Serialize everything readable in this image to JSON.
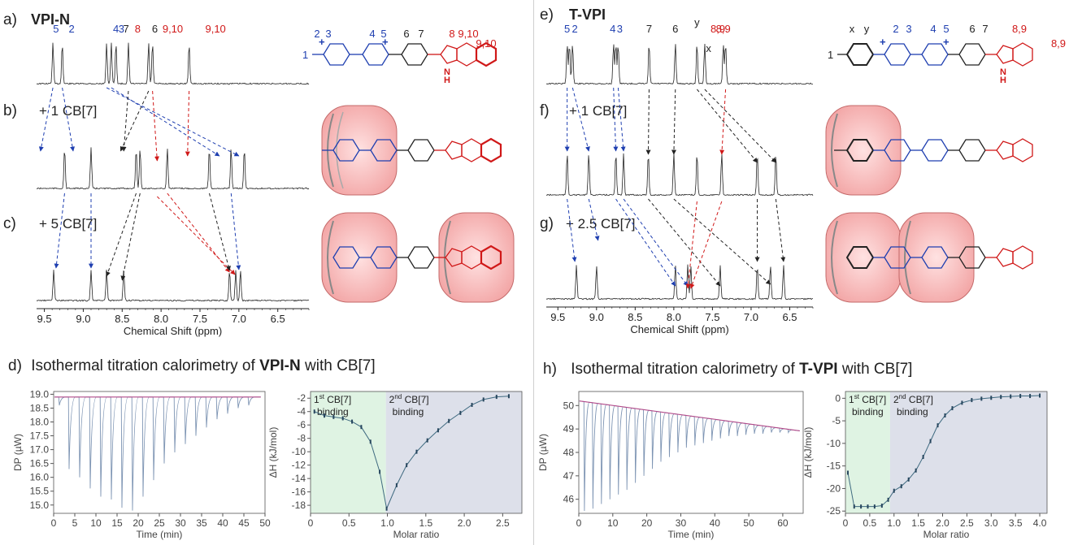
{
  "panels": {
    "a": {
      "label": "a)",
      "title": "VPI-N"
    },
    "b": {
      "label": "b)",
      "text": "+ 1 CB[7]"
    },
    "c": {
      "label": "c)",
      "text": "+ 5 CB[7]"
    },
    "d": {
      "label": "d)",
      "text_pre": "Isothermal titration calorimetry of ",
      "bold": "VPI-N",
      "text_post": " with CB[7]"
    },
    "e": {
      "label": "e)",
      "title": "T-VPI"
    },
    "f": {
      "label": "f)",
      "text": "+ 1 CB[7]"
    },
    "g": {
      "label": "g)",
      "text": "+ 2.5 CB[7]"
    },
    "h": {
      "label": "h)",
      "text_pre": "Isothermal titration calorimetry of ",
      "bold": "T-VPI",
      "text_post": " with CB[7]"
    }
  },
  "nmr_left": {
    "xlabel": "Chemical Shift (ppm)",
    "xticks": [
      "9.5",
      "9.0",
      "8.5",
      "8.0",
      "7.5",
      "7.0",
      "6.5"
    ],
    "peak_labels": [
      {
        "text": "5",
        "color": "#1f3fb0",
        "ppm": 9.35
      },
      {
        "text": "2",
        "color": "#1f3fb0",
        "ppm": 9.15
      },
      {
        "text": "4",
        "color": "#1f3fb0",
        "ppm": 8.58
      },
      {
        "text": "3",
        "color": "#1f3fb0",
        "ppm": 8.51
      },
      {
        "text": "7",
        "color": "#222222",
        "ppm": 8.45
      },
      {
        "text": "8",
        "color": "#d01818",
        "ppm": 8.3
      },
      {
        "text": "6",
        "color": "#222222",
        "ppm": 8.08
      },
      {
        "text": "9,10",
        "color": "#d01818",
        "ppm": 7.85
      },
      {
        "text": "9,10",
        "color": "#d01818",
        "ppm": 7.3
      }
    ],
    "spectra": [
      {
        "peaks_ppm": [
          9.39,
          9.27,
          8.7,
          8.64,
          8.58,
          8.42,
          8.16,
          8.11,
          7.64
        ]
      },
      {
        "peaks_ppm": [
          9.24,
          8.9,
          8.32,
          8.27,
          7.92,
          7.38,
          7.1,
          6.93
        ]
      },
      {
        "peaks_ppm": [
          9.38,
          8.9,
          8.7,
          8.48,
          7.12,
          7.04,
          6.98
        ]
      }
    ]
  },
  "nmr_right": {
    "xlabel": "Chemical Shift (ppm)",
    "xticks": [
      "9.5",
      "9.0",
      "8.5",
      "8.0",
      "7.5",
      "7.0",
      "6.5"
    ],
    "peak_labels": [
      {
        "text": "5",
        "color": "#1f3fb0",
        "ppm": 9.38
      },
      {
        "text": "2",
        "color": "#1f3fb0",
        "ppm": 9.28
      },
      {
        "text": "4",
        "color": "#1f3fb0",
        "ppm": 8.79
      },
      {
        "text": "3",
        "color": "#1f3fb0",
        "ppm": 8.7
      },
      {
        "text": "7",
        "color": "#222222",
        "ppm": 8.32
      },
      {
        "text": "6",
        "color": "#222222",
        "ppm": 7.98
      },
      {
        "text": "y",
        "color": "#222222",
        "ppm": 7.7
      },
      {
        "text": "x",
        "color": "#222222",
        "ppm": 7.55
      },
      {
        "text": "8,9",
        "color": "#d01818",
        "ppm": 7.43
      },
      {
        "text": "8,9",
        "color": "#d01818",
        "ppm": 7.36
      }
    ],
    "spectra": [
      {
        "peaks_ppm": [
          9.38,
          9.35,
          9.31,
          8.78,
          8.75,
          8.72,
          8.32,
          7.98,
          7.7,
          7.6,
          7.36,
          7.33
        ]
      },
      {
        "peaks_ppm": [
          9.38,
          9.1,
          8.75,
          8.65,
          8.33,
          8.0,
          7.7,
          7.38,
          6.92,
          6.68
        ]
      },
      {
        "peaks_ppm": [
          9.26,
          9.0,
          7.98,
          7.82,
          7.78,
          7.4,
          6.92,
          6.75,
          6.58
        ]
      }
    ]
  },
  "structures": {
    "left_top_numbers": [
      {
        "text": "2",
        "color": "#1f3fb0"
      },
      {
        "text": "3",
        "color": "#1f3fb0"
      },
      {
        "text": "4",
        "color": "#1f3fb0"
      },
      {
        "text": "5",
        "color": "#1f3fb0"
      },
      {
        "text": "6",
        "color": "#222222"
      },
      {
        "text": "7",
        "color": "#222222"
      },
      {
        "text": "8",
        "color": "#d01818"
      },
      {
        "text": "9,10",
        "color": "#d01818"
      },
      {
        "text": "9,10",
        "color": "#d01818"
      }
    ],
    "left_methyl": "1",
    "right_top_numbers": [
      {
        "text": "x",
        "color": "#222222"
      },
      {
        "text": "y",
        "color": "#222222"
      },
      {
        "text": "2",
        "color": "#1f3fb0"
      },
      {
        "text": "3",
        "color": "#1f3fb0"
      },
      {
        "text": "4",
        "color": "#1f3fb0"
      },
      {
        "text": "5",
        "color": "#1f3fb0"
      },
      {
        "text": "6",
        "color": "#222222"
      },
      {
        "text": "7",
        "color": "#222222"
      },
      {
        "text": "8,9",
        "color": "#d01818"
      },
      {
        "text": "8,9",
        "color": "#d01818"
      }
    ],
    "right_methyl": "1",
    "plus": "+",
    "nh": "H",
    "n": "N"
  },
  "chart_data": [
    {
      "type": "line",
      "panel": "d-left",
      "xlabel": "Time (min)",
      "ylabel": "DP (µW)",
      "xlim": [
        0,
        50
      ],
      "ylim": [
        14.7,
        19.1
      ],
      "xticks": [
        "0",
        "5",
        "10",
        "15",
        "20",
        "25",
        "30",
        "35",
        "40",
        "45",
        "50"
      ],
      "yticks": [
        "15.0",
        "15.5",
        "16.0",
        "16.5",
        "17.0",
        "17.5",
        "18.0",
        "18.5",
        "19.0"
      ],
      "baseline": 18.9,
      "injection_times": [
        1.2,
        3.5,
        6.0,
        8.5,
        11.0,
        13.5,
        16.0,
        18.5,
        21.0,
        23.5,
        26.0,
        28.5,
        31.0,
        33.5,
        36.0,
        38.5,
        41.0,
        43.5,
        46.0
      ],
      "injection_minima": [
        18.6,
        16.3,
        16.0,
        15.6,
        15.3,
        15.2,
        14.9,
        14.8,
        15.3,
        15.9,
        16.5,
        16.9,
        17.2,
        17.5,
        17.8,
        18.1,
        18.3,
        18.5,
        18.6
      ]
    },
    {
      "type": "scatter",
      "panel": "d-right",
      "xlabel": "Molar ratio",
      "ylabel": "ΔH (kJ/mol)",
      "xlim": [
        0,
        2.75
      ],
      "ylim": [
        -19.2,
        -1.0
      ],
      "xticks": [
        "0",
        "0.5",
        "1.0",
        "1.5",
        "2.0",
        "2.5"
      ],
      "yticks": [
        "-2",
        "-4",
        "-6",
        "-8",
        "-10",
        "-12",
        "-14",
        "-16",
        "-18"
      ],
      "region1": {
        "label_line1_pre": "1",
        "sup": "st",
        "label_line1_post": " CB[7]",
        "label_line2": "binding",
        "x_range": [
          0,
          0.98
        ],
        "color": "#dff3e3"
      },
      "region2": {
        "label_line1_pre": "2",
        "sup": "nd",
        "label_line1_post": " CB[7]",
        "label_line2": "binding",
        "x_range": [
          0.98,
          2.75
        ],
        "color": "#dde0ea"
      },
      "x": [
        0.05,
        0.18,
        0.3,
        0.42,
        0.54,
        0.66,
        0.78,
        0.9,
        0.99,
        1.12,
        1.25,
        1.38,
        1.52,
        1.66,
        1.8,
        1.95,
        2.1,
        2.25,
        2.42,
        2.58
      ],
      "y": [
        -4.0,
        -4.6,
        -4.8,
        -5.0,
        -5.5,
        -6.3,
        -8.5,
        -13.0,
        -18.5,
        -15.0,
        -12.0,
        -10.0,
        -8.3,
        -6.8,
        -5.4,
        -4.2,
        -3.0,
        -2.2,
        -1.8,
        -1.7
      ]
    },
    {
      "type": "line",
      "panel": "h-left",
      "xlabel": "Time (min)",
      "ylabel": "DP (µW)",
      "xlim": [
        0,
        66
      ],
      "ylim": [
        45.4,
        50.6
      ],
      "xticks": [
        "0",
        "10",
        "20",
        "30",
        "40",
        "50",
        "60"
      ],
      "yticks": [
        "46",
        "47",
        "48",
        "49",
        "50"
      ],
      "baseline_start": 50.2,
      "baseline_end": 48.9,
      "injection_times": [
        1.5,
        4,
        6.5,
        9,
        11.5,
        14,
        16.5,
        19,
        21.5,
        24,
        26.5,
        29,
        31.5,
        34,
        36.5,
        39,
        41.5,
        44,
        46.5,
        49,
        51.5,
        54,
        56.5,
        59,
        61.5
      ],
      "injection_minima": [
        45.5,
        45.6,
        45.8,
        46.0,
        46.2,
        46.4,
        46.7,
        47.0,
        47.3,
        47.6,
        47.8,
        48.0,
        48.2,
        48.3,
        48.4,
        48.5,
        48.6,
        48.7,
        48.7,
        48.75,
        48.8,
        48.8,
        48.85,
        48.85,
        48.85
      ]
    },
    {
      "type": "scatter",
      "panel": "h-right",
      "xlabel": "Molar ratio",
      "ylabel": "ΔH (kJ/mol)",
      "xlim": [
        0,
        4.15
      ],
      "ylim": [
        -25.5,
        1.5
      ],
      "xticks": [
        "0",
        "0.5",
        "1.0",
        "1.5",
        "2.0",
        "2.5",
        "3.0",
        "3.5",
        "4.0"
      ],
      "yticks": [
        "0",
        "-5",
        "-10",
        "-15",
        "-20",
        "-25"
      ],
      "region1": {
        "label_line1_pre": "1",
        "sup": "st",
        "label_line1_post": " CB[7]",
        "label_line2": "binding",
        "x_range": [
          0,
          0.92
        ],
        "color": "#dff3e3"
      },
      "region2": {
        "label_line1_pre": "2",
        "sup": "nd",
        "label_line1_post": " CB[7]",
        "label_line2": "binding",
        "x_range": [
          0.92,
          4.15
        ],
        "color": "#dde0ea"
      },
      "x": [
        0.05,
        0.18,
        0.32,
        0.46,
        0.6,
        0.75,
        0.88,
        1.0,
        1.15,
        1.3,
        1.45,
        1.6,
        1.75,
        1.9,
        2.05,
        2.2,
        2.4,
        2.6,
        2.8,
        3.0,
        3.2,
        3.4,
        3.6,
        3.8,
        4.0
      ],
      "y": [
        -16.5,
        -24.0,
        -24.0,
        -24.0,
        -24.0,
        -23.8,
        -22.5,
        -20.5,
        -19.5,
        -18.0,
        -16.0,
        -13.0,
        -9.5,
        -6.0,
        -3.8,
        -2.2,
        -1.0,
        -0.4,
        -0.1,
        0.1,
        0.3,
        0.4,
        0.5,
        0.5,
        0.6
      ]
    }
  ]
}
